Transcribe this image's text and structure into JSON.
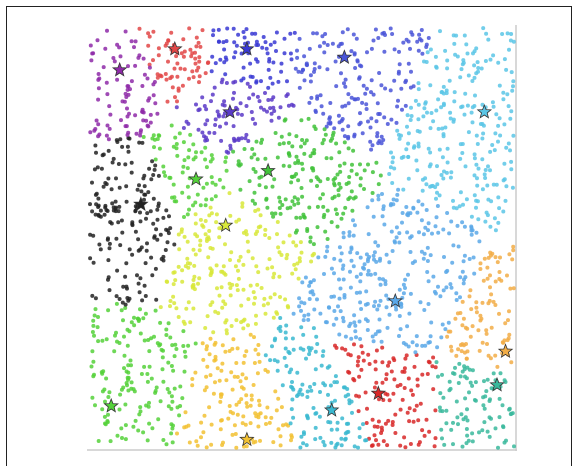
{
  "chart_data": {
    "type": "scatter",
    "title": "",
    "xlabel": "",
    "ylabel": "",
    "xlim": [
      0,
      1
    ],
    "ylim": [
      0,
      1
    ],
    "grid": false,
    "legend": "none",
    "points_per_cluster_approx": 140,
    "clusters": [
      {
        "color": "#8e2aa8",
        "center": [
          0.07,
          0.9
        ]
      },
      {
        "color": "#e24646",
        "center": [
          0.2,
          0.95
        ]
      },
      {
        "color": "#3838d4",
        "center": [
          0.37,
          0.95
        ]
      },
      {
        "color": "#5a3ac8",
        "center": [
          0.33,
          0.8
        ]
      },
      {
        "color": "#4a55d8",
        "center": [
          0.6,
          0.93
        ]
      },
      {
        "color": "#222222",
        "center": [
          0.12,
          0.58
        ]
      },
      {
        "color": "#41c23a",
        "center": [
          0.42,
          0.66
        ]
      },
      {
        "color": "#55d13a",
        "center": [
          0.25,
          0.64
        ]
      },
      {
        "color": "#5bc6e6",
        "center": [
          0.93,
          0.8
        ]
      },
      {
        "color": "#5aa8e8",
        "center": [
          0.72,
          0.35
        ]
      },
      {
        "color": "#d8e83a",
        "center": [
          0.32,
          0.53
        ]
      },
      {
        "color": "#55d13a",
        "center": [
          0.05,
          0.1
        ]
      },
      {
        "color": "#f2c132",
        "center": [
          0.37,
          0.02
        ]
      },
      {
        "color": "#3ab8d0",
        "center": [
          0.57,
          0.09
        ]
      },
      {
        "color": "#d82828",
        "center": [
          0.68,
          0.13
        ]
      },
      {
        "color": "#3ab89c",
        "center": [
          0.96,
          0.15
        ]
      },
      {
        "color": "#f2ad46",
        "center": [
          0.98,
          0.23
        ]
      }
    ]
  }
}
